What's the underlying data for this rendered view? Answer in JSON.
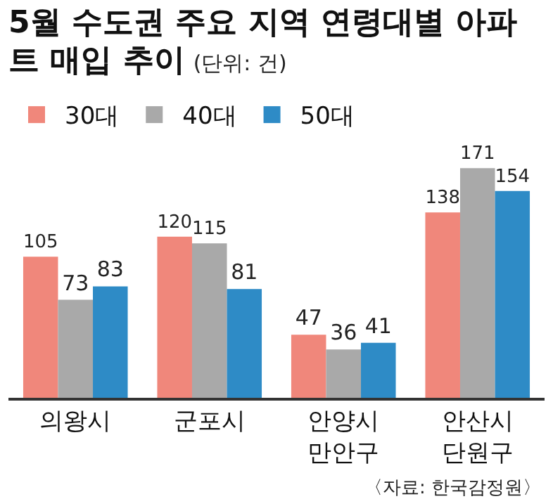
{
  "chart_data": {
    "type": "bar",
    "title": "5월 수도권 주요 지역 연령대별 아파트 매입 추이",
    "subtitle": "(단위: 건)",
    "categories": [
      "의왕시",
      "군포시",
      "안양시 만안구",
      "안산시 단원구"
    ],
    "series": [
      {
        "name": "30대",
        "color": "#f0877b",
        "values": [
          105,
          120,
          47,
          138
        ]
      },
      {
        "name": "40대",
        "color": "#a9a9a9",
        "values": [
          73,
          115,
          36,
          171
        ]
      },
      {
        "name": "50대",
        "color": "#2e8bc6",
        "values": [
          83,
          81,
          41,
          154
        ]
      }
    ],
    "data_labels": true,
    "legend": "top left",
    "grid": false,
    "annotations": [
      "〈자료: 한국감정원〉"
    ]
  }
}
